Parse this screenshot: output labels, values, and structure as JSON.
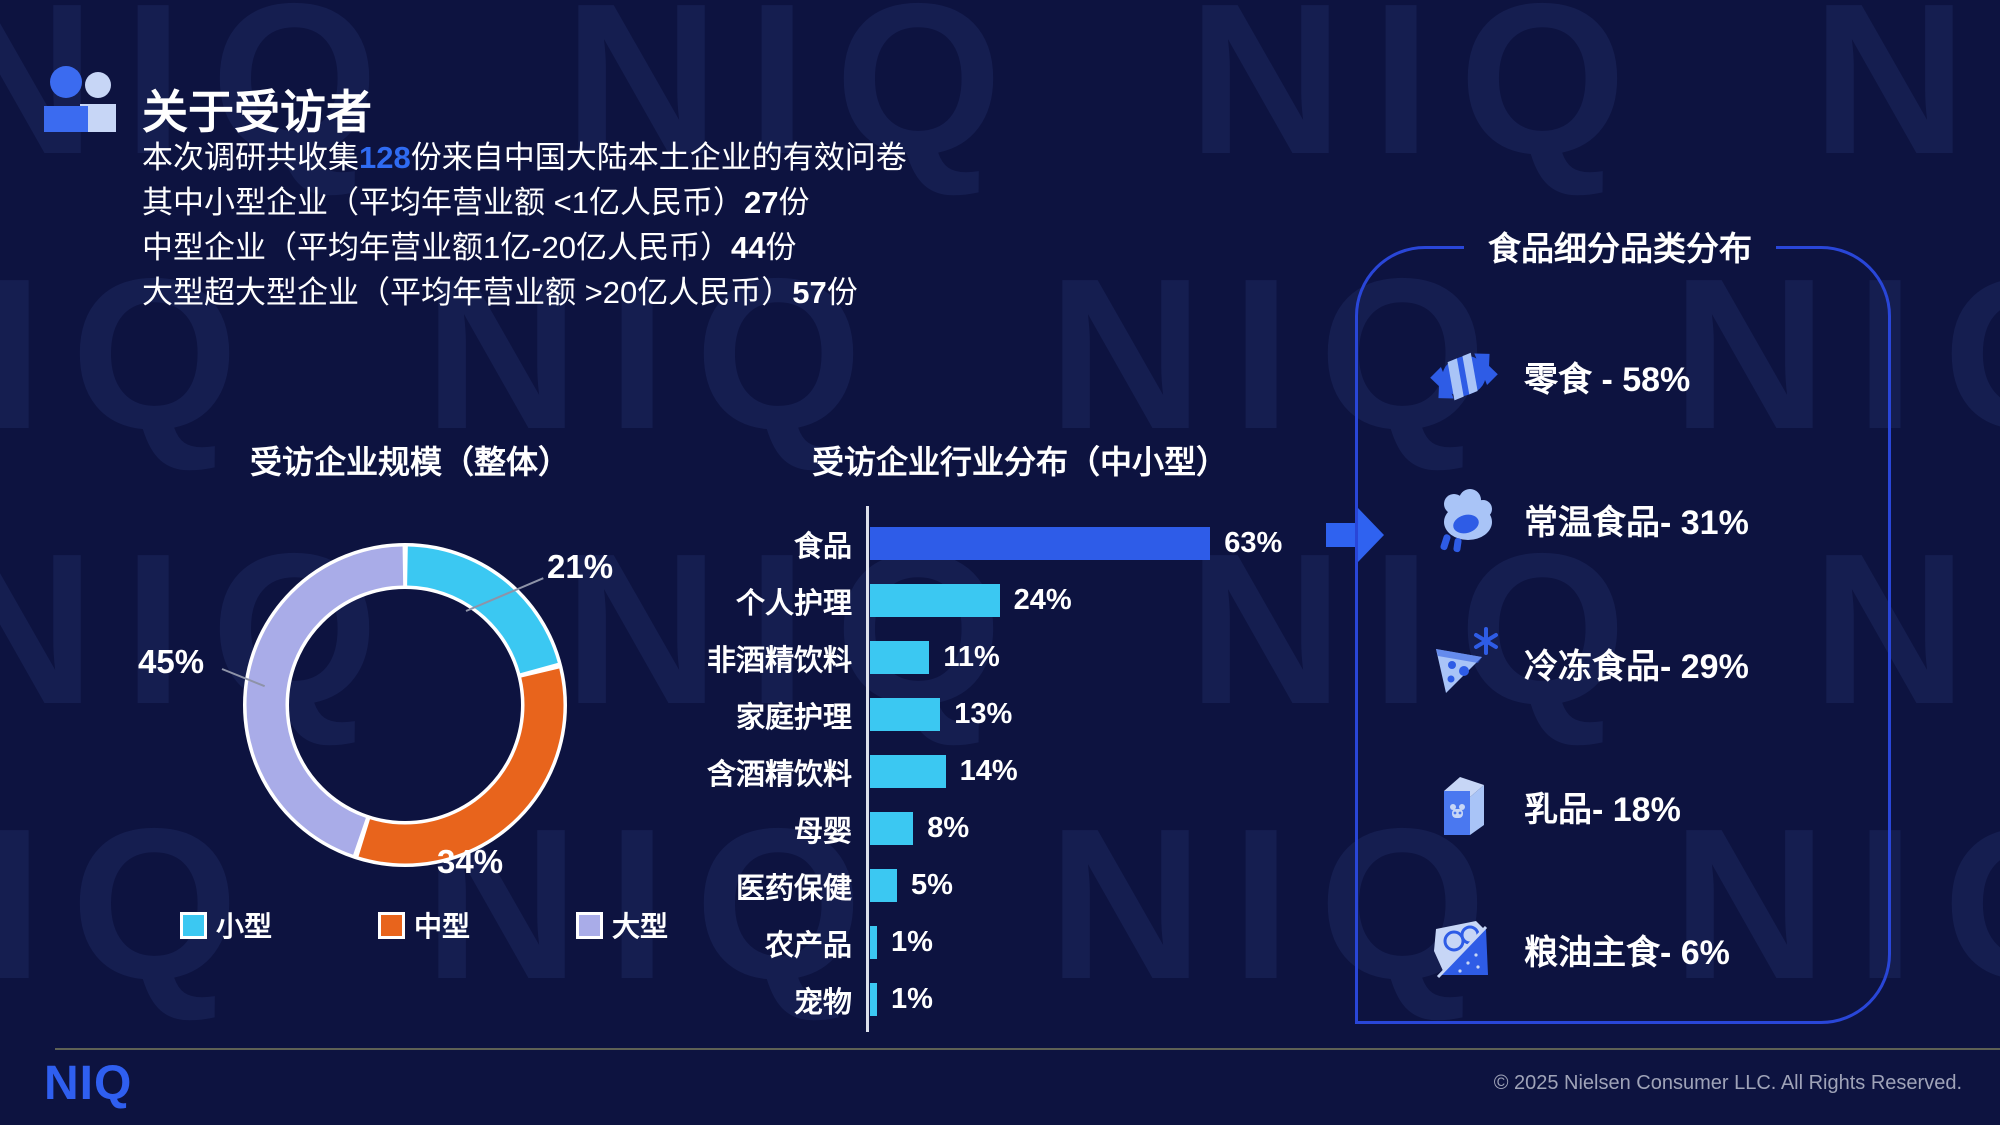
{
  "background": {
    "watermark_word": "NIQ",
    "watermark_row": "NIQ NIQ NIQ NIQ NIQ NIQ"
  },
  "header": {
    "title": "关于受访者"
  },
  "intro": {
    "line1_prefix": "本次调研共收集",
    "line1_highlight": "128",
    "line1_suffix": "份来自中国大陆本土企业的有效问卷",
    "line2_prefix": "其中小型企业（平均年营业额 <1亿人民币）",
    "line2_count": "27",
    "line2_unit": "份",
    "line3_prefix": "中型企业（平均年营业额1亿-20亿人民币）",
    "line3_count": "44",
    "line3_unit": "份",
    "line4_prefix": "大型超大型企业（平均年营业额 >20亿人民币）",
    "line4_count": "57",
    "line4_unit": "份"
  },
  "chart_data": [
    {
      "type": "pie",
      "donut": true,
      "title": "受访企业规模（整体）",
      "labels": [
        "小型",
        "中型",
        "大型"
      ],
      "values": [
        21,
        34,
        45
      ],
      "value_labels": [
        "21%",
        "34%",
        "45%"
      ],
      "colors": [
        "#3BC8F2",
        "#E8641C",
        "#A9ACE8"
      ],
      "start_angle_deg": 0,
      "direction": "clockwise",
      "legend_position": "bottom"
    },
    {
      "type": "bar",
      "orientation": "horizontal",
      "title": "受访企业行业分布（中小型）",
      "categories": [
        "食品",
        "个人护理",
        "非酒精饮料",
        "家庭护理",
        "含酒精饮料",
        "母婴",
        "医药保健",
        "农产品",
        "宠物"
      ],
      "values": [
        63,
        24,
        11,
        13,
        14,
        8,
        5,
        1,
        1
      ],
      "values_display": [
        "63%",
        "24%",
        "11%",
        "13%",
        "14%",
        "8%",
        "5%",
        "1%",
        "1%"
      ],
      "bar_colors": [
        "#2E5CE8",
        "#3BC8F2",
        "#3BC8F2",
        "#3BC8F2",
        "#3BC8F2",
        "#3BC8F2",
        "#3BC8F2",
        "#3BC8F2",
        "#3BC8F2"
      ],
      "xlim": [
        0,
        63
      ],
      "grid": false
    },
    {
      "type": "table",
      "title": "食品细分品类分布",
      "categories": [
        "零食",
        "常温食品",
        "冷冻食品",
        "乳品",
        "粮油主食"
      ],
      "values": [
        58,
        31,
        29,
        18,
        6
      ],
      "display": [
        "零食 - 58%",
        "常温食品- 31%",
        "冷冻食品- 29%",
        "乳品- 18%",
        "粮油主食- 6%"
      ],
      "icons": [
        "candy-icon",
        "roast-poultry-icon",
        "frozen-pizza-icon",
        "milk-carton-icon",
        "grain-staples-icon"
      ]
    }
  ],
  "colors": {
    "background": "#0D1340",
    "accent_blue": "#2F62F0",
    "bar_blue": "#2E5CE8",
    "cyan": "#3BC8F2",
    "orange": "#E8641C",
    "lavender": "#A9ACE8",
    "panel_border": "#2946D8",
    "highlight_number": "#2F6BF2"
  },
  "footer": {
    "logo": "NIQ",
    "copyright": "© 2025 Nielsen Consumer LLC. All Rights Reserved."
  }
}
